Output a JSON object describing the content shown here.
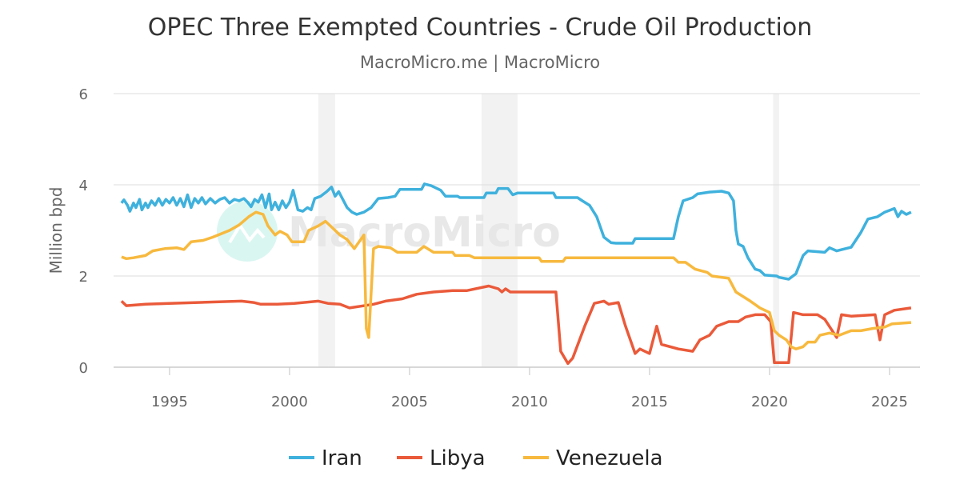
{
  "chart_data": {
    "type": "line",
    "title": "OPEC Three Exempted Countries - Crude Oil Production",
    "subtitle": "MacroMicro.me | MacroMicro",
    "watermark": "MacroMicro",
    "ylabel": "Million bpd",
    "xlabel": "",
    "xlim": [
      1992.67,
      2026.27
    ],
    "ylim": [
      0,
      6
    ],
    "xticks": [
      1995,
      2000,
      2005,
      2010,
      2015,
      2020,
      2025
    ],
    "yticks": [
      0,
      2,
      4,
      6
    ],
    "grid": true,
    "legend_placement": "bottom",
    "shaded_periods": [
      [
        2001.2,
        2001.9
      ],
      [
        2008.0,
        2009.5
      ],
      [
        2020.15,
        2020.4
      ]
    ],
    "series": [
      {
        "name": "Iran",
        "color": "#3fb1dd",
        "points": [
          [
            1993.0,
            3.6
          ],
          [
            1993.1,
            3.67
          ],
          [
            1993.25,
            3.55
          ],
          [
            1993.35,
            3.42
          ],
          [
            1993.5,
            3.6
          ],
          [
            1993.6,
            3.5
          ],
          [
            1993.75,
            3.68
          ],
          [
            1993.85,
            3.45
          ],
          [
            1994.0,
            3.6
          ],
          [
            1994.1,
            3.5
          ],
          [
            1994.25,
            3.65
          ],
          [
            1994.4,
            3.55
          ],
          [
            1994.55,
            3.7
          ],
          [
            1994.7,
            3.55
          ],
          [
            1994.85,
            3.68
          ],
          [
            1995.0,
            3.6
          ],
          [
            1995.15,
            3.72
          ],
          [
            1995.3,
            3.55
          ],
          [
            1995.45,
            3.7
          ],
          [
            1995.6,
            3.52
          ],
          [
            1995.75,
            3.78
          ],
          [
            1995.9,
            3.5
          ],
          [
            1996.05,
            3.7
          ],
          [
            1996.2,
            3.6
          ],
          [
            1996.35,
            3.72
          ],
          [
            1996.5,
            3.58
          ],
          [
            1996.7,
            3.7
          ],
          [
            1996.9,
            3.6
          ],
          [
            1997.1,
            3.68
          ],
          [
            1997.3,
            3.72
          ],
          [
            1997.5,
            3.6
          ],
          [
            1997.7,
            3.68
          ],
          [
            1997.9,
            3.65
          ],
          [
            1998.1,
            3.7
          ],
          [
            1998.25,
            3.62
          ],
          [
            1998.4,
            3.52
          ],
          [
            1998.55,
            3.68
          ],
          [
            1998.7,
            3.62
          ],
          [
            1998.85,
            3.78
          ],
          [
            1999.0,
            3.5
          ],
          [
            1999.15,
            3.8
          ],
          [
            1999.25,
            3.45
          ],
          [
            1999.4,
            3.62
          ],
          [
            1999.55,
            3.45
          ],
          [
            1999.7,
            3.65
          ],
          [
            1999.85,
            3.5
          ],
          [
            2000.0,
            3.62
          ],
          [
            2000.15,
            3.88
          ],
          [
            2000.35,
            3.45
          ],
          [
            2000.55,
            3.42
          ],
          [
            2000.75,
            3.5
          ],
          [
            2000.9,
            3.45
          ],
          [
            2001.05,
            3.7
          ],
          [
            2001.3,
            3.75
          ],
          [
            2001.55,
            3.85
          ],
          [
            2001.75,
            3.95
          ],
          [
            2001.9,
            3.75
          ],
          [
            2002.05,
            3.85
          ],
          [
            2002.2,
            3.7
          ],
          [
            2002.4,
            3.5
          ],
          [
            2002.6,
            3.4
          ],
          [
            2002.8,
            3.35
          ],
          [
            2003.1,
            3.4
          ],
          [
            2003.4,
            3.5
          ],
          [
            2003.7,
            3.7
          ],
          [
            2004.1,
            3.72
          ],
          [
            2004.4,
            3.75
          ],
          [
            2004.6,
            3.9
          ],
          [
            2005.5,
            3.9
          ],
          [
            2005.62,
            4.02
          ],
          [
            2005.9,
            3.98
          ],
          [
            2006.3,
            3.88
          ],
          [
            2006.5,
            3.75
          ],
          [
            2007.0,
            3.75
          ],
          [
            2007.1,
            3.72
          ],
          [
            2008.1,
            3.72
          ],
          [
            2008.2,
            3.82
          ],
          [
            2008.6,
            3.82
          ],
          [
            2008.7,
            3.92
          ],
          [
            2009.1,
            3.92
          ],
          [
            2009.3,
            3.78
          ],
          [
            2009.5,
            3.82
          ],
          [
            2011.0,
            3.82
          ],
          [
            2011.1,
            3.72
          ],
          [
            2012.0,
            3.72
          ],
          [
            2012.2,
            3.65
          ],
          [
            2012.5,
            3.55
          ],
          [
            2012.8,
            3.3
          ],
          [
            2013.1,
            2.85
          ],
          [
            2013.4,
            2.73
          ],
          [
            2013.6,
            2.72
          ],
          [
            2014.3,
            2.72
          ],
          [
            2014.4,
            2.82
          ],
          [
            2016.0,
            2.82
          ],
          [
            2016.2,
            3.3
          ],
          [
            2016.4,
            3.65
          ],
          [
            2016.8,
            3.72
          ],
          [
            2017.0,
            3.8
          ],
          [
            2017.5,
            3.84
          ],
          [
            2018.0,
            3.86
          ],
          [
            2018.3,
            3.82
          ],
          [
            2018.5,
            3.65
          ],
          [
            2018.6,
            3.0
          ],
          [
            2018.7,
            2.7
          ],
          [
            2018.9,
            2.65
          ],
          [
            2019.1,
            2.4
          ],
          [
            2019.4,
            2.15
          ],
          [
            2019.6,
            2.12
          ],
          [
            2019.8,
            2.02
          ],
          [
            2020.3,
            2.0
          ],
          [
            2020.4,
            1.97
          ],
          [
            2020.8,
            1.93
          ],
          [
            2021.1,
            2.05
          ],
          [
            2021.4,
            2.45
          ],
          [
            2021.6,
            2.55
          ],
          [
            2022.3,
            2.52
          ],
          [
            2022.5,
            2.62
          ],
          [
            2022.8,
            2.55
          ],
          [
            2023.4,
            2.63
          ],
          [
            2023.8,
            2.95
          ],
          [
            2024.1,
            3.25
          ],
          [
            2024.5,
            3.3
          ],
          [
            2024.8,
            3.4
          ],
          [
            2025.2,
            3.48
          ],
          [
            2025.35,
            3.3
          ],
          [
            2025.5,
            3.42
          ],
          [
            2025.7,
            3.35
          ],
          [
            2025.9,
            3.4
          ]
        ]
      },
      {
        "name": "Libya",
        "color": "#ea5a3a",
        "points": [
          [
            1993.0,
            1.45
          ],
          [
            1993.2,
            1.35
          ],
          [
            1994.0,
            1.38
          ],
          [
            1995.0,
            1.4
          ],
          [
            1998.0,
            1.45
          ],
          [
            1998.5,
            1.42
          ],
          [
            1998.8,
            1.38
          ],
          [
            1999.5,
            1.38
          ],
          [
            2000.2,
            1.4
          ],
          [
            2001.2,
            1.45
          ],
          [
            2001.6,
            1.4
          ],
          [
            2002.1,
            1.38
          ],
          [
            2002.5,
            1.3
          ],
          [
            2003.5,
            1.38
          ],
          [
            2004.0,
            1.45
          ],
          [
            2004.7,
            1.5
          ],
          [
            2005.3,
            1.6
          ],
          [
            2006.0,
            1.65
          ],
          [
            2006.8,
            1.68
          ],
          [
            2007.4,
            1.68
          ],
          [
            2008.3,
            1.78
          ],
          [
            2008.7,
            1.72
          ],
          [
            2008.85,
            1.65
          ],
          [
            2009.0,
            1.72
          ],
          [
            2009.2,
            1.65
          ],
          [
            2011.1,
            1.65
          ],
          [
            2011.3,
            0.35
          ],
          [
            2011.6,
            0.08
          ],
          [
            2011.8,
            0.2
          ],
          [
            2012.3,
            0.9
          ],
          [
            2012.7,
            1.4
          ],
          [
            2013.1,
            1.45
          ],
          [
            2013.3,
            1.38
          ],
          [
            2013.7,
            1.42
          ],
          [
            2014.0,
            0.9
          ],
          [
            2014.4,
            0.3
          ],
          [
            2014.6,
            0.4
          ],
          [
            2015.0,
            0.3
          ],
          [
            2015.3,
            0.9
          ],
          [
            2015.5,
            0.5
          ],
          [
            2016.2,
            0.4
          ],
          [
            2016.8,
            0.35
          ],
          [
            2017.1,
            0.6
          ],
          [
            2017.5,
            0.7
          ],
          [
            2017.8,
            0.9
          ],
          [
            2018.3,
            1.0
          ],
          [
            2018.7,
            1.0
          ],
          [
            2019.0,
            1.1
          ],
          [
            2019.4,
            1.15
          ],
          [
            2019.8,
            1.15
          ],
          [
            2020.05,
            1.0
          ],
          [
            2020.2,
            0.1
          ],
          [
            2020.8,
            0.1
          ],
          [
            2021.0,
            1.2
          ],
          [
            2021.4,
            1.15
          ],
          [
            2022.0,
            1.15
          ],
          [
            2022.3,
            1.05
          ],
          [
            2022.8,
            0.65
          ],
          [
            2023.0,
            1.15
          ],
          [
            2023.4,
            1.12
          ],
          [
            2024.4,
            1.15
          ],
          [
            2024.6,
            0.6
          ],
          [
            2024.8,
            1.15
          ],
          [
            2025.2,
            1.25
          ],
          [
            2025.9,
            1.3
          ]
        ]
      },
      {
        "name": "Venezuela",
        "color": "#f7b93e",
        "points": [
          [
            1993.0,
            2.42
          ],
          [
            1993.2,
            2.38
          ],
          [
            1993.5,
            2.4
          ],
          [
            1994.0,
            2.45
          ],
          [
            1994.3,
            2.55
          ],
          [
            1994.8,
            2.6
          ],
          [
            1995.3,
            2.62
          ],
          [
            1995.6,
            2.58
          ],
          [
            1995.9,
            2.75
          ],
          [
            1996.4,
            2.78
          ],
          [
            1996.8,
            2.85
          ],
          [
            1997.5,
            3.0
          ],
          [
            1997.9,
            3.12
          ],
          [
            1998.3,
            3.3
          ],
          [
            1998.6,
            3.4
          ],
          [
            1998.9,
            3.35
          ],
          [
            1999.1,
            3.1
          ],
          [
            1999.4,
            2.9
          ],
          [
            1999.6,
            2.98
          ],
          [
            1999.9,
            2.9
          ],
          [
            2000.1,
            2.75
          ],
          [
            2000.6,
            2.75
          ],
          [
            2000.8,
            3.0
          ],
          [
            2001.2,
            3.1
          ],
          [
            2001.5,
            3.2
          ],
          [
            2001.8,
            3.05
          ],
          [
            2002.1,
            2.9
          ],
          [
            2002.4,
            2.8
          ],
          [
            2002.7,
            2.6
          ],
          [
            2002.9,
            2.75
          ],
          [
            2003.1,
            2.9
          ],
          [
            2003.2,
            0.85
          ],
          [
            2003.3,
            0.65
          ],
          [
            2003.5,
            2.6
          ],
          [
            2003.7,
            2.65
          ],
          [
            2004.2,
            2.62
          ],
          [
            2004.5,
            2.52
          ],
          [
            2005.3,
            2.52
          ],
          [
            2005.6,
            2.65
          ],
          [
            2006.0,
            2.52
          ],
          [
            2006.8,
            2.52
          ],
          [
            2006.9,
            2.45
          ],
          [
            2007.5,
            2.45
          ],
          [
            2007.7,
            2.4
          ],
          [
            2010.4,
            2.4
          ],
          [
            2010.5,
            2.32
          ],
          [
            2011.4,
            2.32
          ],
          [
            2011.5,
            2.4
          ],
          [
            2016.0,
            2.4
          ],
          [
            2016.2,
            2.3
          ],
          [
            2016.5,
            2.3
          ],
          [
            2016.9,
            2.15
          ],
          [
            2017.4,
            2.08
          ],
          [
            2017.6,
            2.0
          ],
          [
            2018.3,
            1.95
          ],
          [
            2018.6,
            1.65
          ],
          [
            2019.2,
            1.45
          ],
          [
            2019.6,
            1.3
          ],
          [
            2020.0,
            1.2
          ],
          [
            2020.2,
            0.8
          ],
          [
            2020.4,
            0.7
          ],
          [
            2020.7,
            0.6
          ],
          [
            2020.9,
            0.45
          ],
          [
            2021.1,
            0.4
          ],
          [
            2021.4,
            0.45
          ],
          [
            2021.6,
            0.55
          ],
          [
            2021.9,
            0.55
          ],
          [
            2022.1,
            0.7
          ],
          [
            2022.5,
            0.75
          ],
          [
            2022.9,
            0.7
          ],
          [
            2023.4,
            0.8
          ],
          [
            2023.8,
            0.8
          ],
          [
            2024.3,
            0.85
          ],
          [
            2024.8,
            0.88
          ],
          [
            2025.1,
            0.95
          ],
          [
            2025.9,
            0.98
          ]
        ]
      }
    ]
  }
}
